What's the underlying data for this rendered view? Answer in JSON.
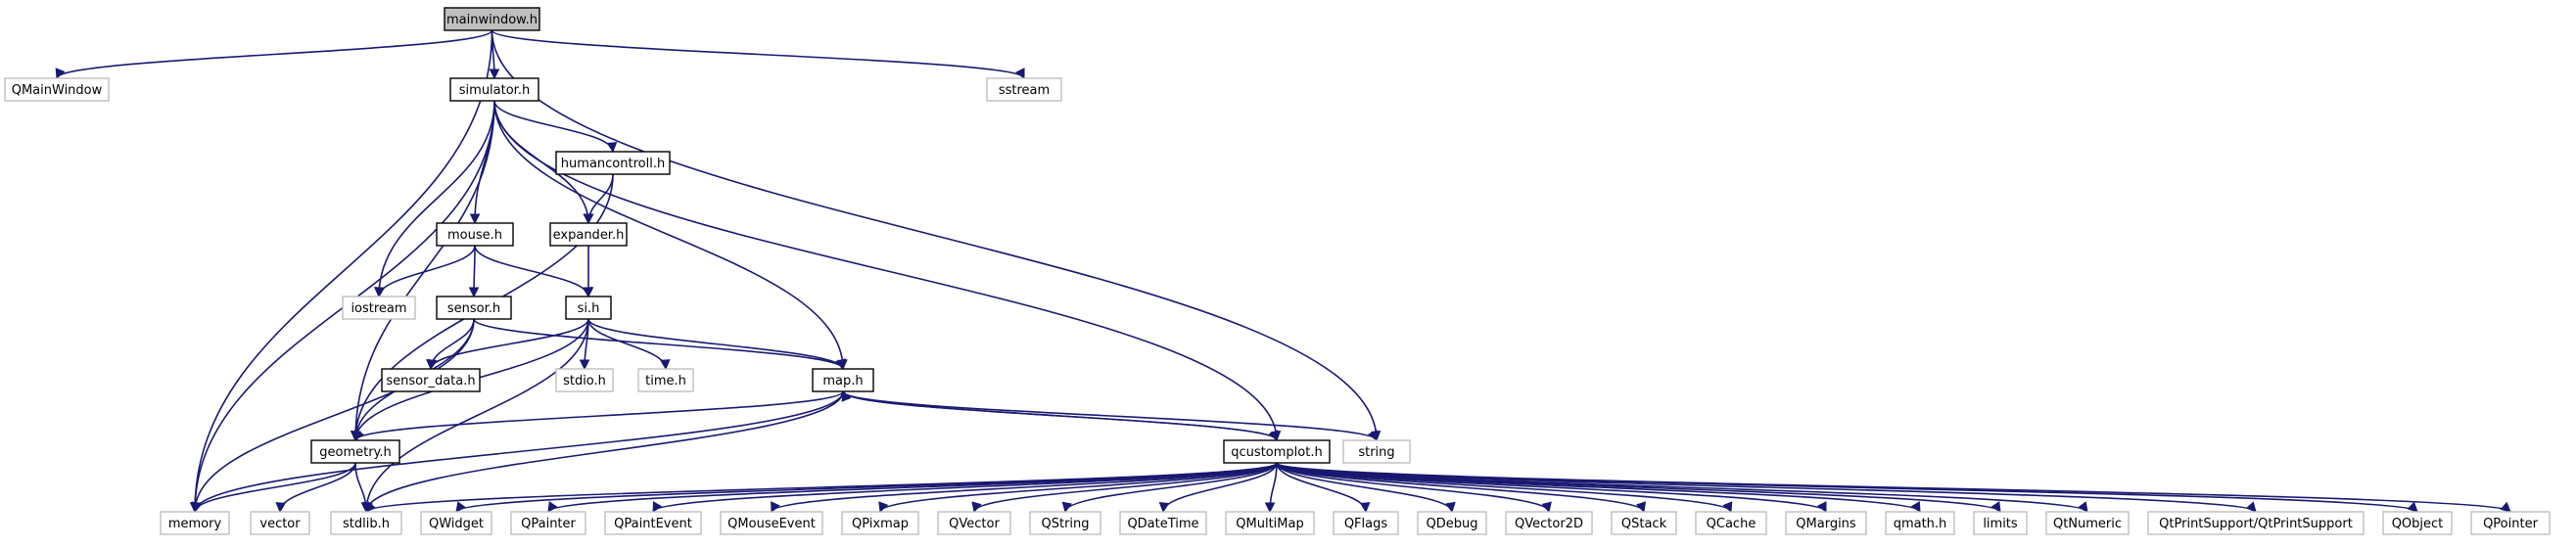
{
  "graph": {
    "nodes": [
      {
        "id": "mainwindow",
        "label": "mainwindow.h",
        "kind": "main"
      },
      {
        "id": "qmainwindow",
        "label": "QMainWindow",
        "kind": "ext"
      },
      {
        "id": "simulator",
        "label": "simulator.h",
        "kind": "doc"
      },
      {
        "id": "sstream",
        "label": "sstream",
        "kind": "ext"
      },
      {
        "id": "humancontroll",
        "label": "humancontroll.h",
        "kind": "doc"
      },
      {
        "id": "mouse",
        "label": "mouse.h",
        "kind": "doc"
      },
      {
        "id": "expander",
        "label": "expander.h",
        "kind": "doc"
      },
      {
        "id": "iostream",
        "label": "iostream",
        "kind": "ext"
      },
      {
        "id": "sensor",
        "label": "sensor.h",
        "kind": "doc"
      },
      {
        "id": "si",
        "label": "si.h",
        "kind": "doc"
      },
      {
        "id": "sensor_data",
        "label": "sensor_data.h",
        "kind": "doc"
      },
      {
        "id": "stdio",
        "label": "stdio.h",
        "kind": "ext"
      },
      {
        "id": "time",
        "label": "time.h",
        "kind": "ext"
      },
      {
        "id": "map",
        "label": "map.h",
        "kind": "doc"
      },
      {
        "id": "geometry",
        "label": "geometry.h",
        "kind": "doc"
      },
      {
        "id": "qcustomplot",
        "label": "qcustomplot.h",
        "kind": "doc"
      },
      {
        "id": "string",
        "label": "string",
        "kind": "ext"
      },
      {
        "id": "memory",
        "label": "memory",
        "kind": "ext"
      },
      {
        "id": "vector",
        "label": "vector",
        "kind": "ext"
      },
      {
        "id": "stdlib",
        "label": "stdlib.h",
        "kind": "ext"
      },
      {
        "id": "qwidget",
        "label": "QWidget",
        "kind": "ext"
      },
      {
        "id": "qpainter",
        "label": "QPainter",
        "kind": "ext"
      },
      {
        "id": "qpaintevent",
        "label": "QPaintEvent",
        "kind": "ext"
      },
      {
        "id": "qmouseevent",
        "label": "QMouseEvent",
        "kind": "ext"
      },
      {
        "id": "qpixmap",
        "label": "QPixmap",
        "kind": "ext"
      },
      {
        "id": "qvector",
        "label": "QVector",
        "kind": "ext"
      },
      {
        "id": "qstring",
        "label": "QString",
        "kind": "ext"
      },
      {
        "id": "qdatetime",
        "label": "QDateTime",
        "kind": "ext"
      },
      {
        "id": "qmultimap",
        "label": "QMultiMap",
        "kind": "ext"
      },
      {
        "id": "qflags",
        "label": "QFlags",
        "kind": "ext"
      },
      {
        "id": "qdebug",
        "label": "QDebug",
        "kind": "ext"
      },
      {
        "id": "qvector2d",
        "label": "QVector2D",
        "kind": "ext"
      },
      {
        "id": "qstack",
        "label": "QStack",
        "kind": "ext"
      },
      {
        "id": "qcache",
        "label": "QCache",
        "kind": "ext"
      },
      {
        "id": "qmargins",
        "label": "QMargins",
        "kind": "ext"
      },
      {
        "id": "qmath",
        "label": "qmath.h",
        "kind": "ext"
      },
      {
        "id": "limits",
        "label": "limits",
        "kind": "ext"
      },
      {
        "id": "qtnumeric",
        "label": "QtNumeric",
        "kind": "ext"
      },
      {
        "id": "qtprintsupport",
        "label": "QtPrintSupport/QtPrintSupport",
        "kind": "ext"
      },
      {
        "id": "qobject",
        "label": "QObject",
        "kind": "ext"
      },
      {
        "id": "qpointer",
        "label": "QPointer",
        "kind": "ext"
      }
    ],
    "edges": [
      [
        "mainwindow",
        "qmainwindow"
      ],
      [
        "mainwindow",
        "simulator"
      ],
      [
        "mainwindow",
        "sstream"
      ],
      [
        "mainwindow",
        "string"
      ],
      [
        "mainwindow",
        "memory"
      ],
      [
        "simulator",
        "humancontroll"
      ],
      [
        "simulator",
        "mouse"
      ],
      [
        "simulator",
        "expander"
      ],
      [
        "simulator",
        "iostream"
      ],
      [
        "simulator",
        "map"
      ],
      [
        "simulator",
        "geometry"
      ],
      [
        "simulator",
        "qcustomplot"
      ],
      [
        "simulator",
        "memory"
      ],
      [
        "humancontroll",
        "expander"
      ],
      [
        "humancontroll",
        "geometry"
      ],
      [
        "mouse",
        "iostream"
      ],
      [
        "mouse",
        "sensor"
      ],
      [
        "mouse",
        "si"
      ],
      [
        "expander",
        "si"
      ],
      [
        "sensor",
        "sensor_data"
      ],
      [
        "sensor",
        "map"
      ],
      [
        "sensor",
        "geometry"
      ],
      [
        "sensor",
        "memory"
      ],
      [
        "si",
        "sensor_data"
      ],
      [
        "si",
        "stdio"
      ],
      [
        "si",
        "time"
      ],
      [
        "si",
        "map"
      ],
      [
        "si",
        "geometry"
      ],
      [
        "si",
        "stdlib"
      ],
      [
        "map",
        "geometry"
      ],
      [
        "map",
        "qcustomplot"
      ],
      [
        "map",
        "string"
      ],
      [
        "map",
        "memory"
      ],
      [
        "map",
        "stdlib"
      ],
      [
        "geometry",
        "memory"
      ],
      [
        "geometry",
        "vector"
      ],
      [
        "geometry",
        "stdlib"
      ],
      [
        "qcustomplot",
        "qwidget"
      ],
      [
        "qcustomplot",
        "qpainter"
      ],
      [
        "qcustomplot",
        "qpaintevent"
      ],
      [
        "qcustomplot",
        "qmouseevent"
      ],
      [
        "qcustomplot",
        "qpixmap"
      ],
      [
        "qcustomplot",
        "qvector"
      ],
      [
        "qcustomplot",
        "qstring"
      ],
      [
        "qcustomplot",
        "qdatetime"
      ],
      [
        "qcustomplot",
        "qmultimap"
      ],
      [
        "qcustomplot",
        "qflags"
      ],
      [
        "qcustomplot",
        "qdebug"
      ],
      [
        "qcustomplot",
        "qvector2d"
      ],
      [
        "qcustomplot",
        "qstack"
      ],
      [
        "qcustomplot",
        "qcache"
      ],
      [
        "qcustomplot",
        "qmargins"
      ],
      [
        "qcustomplot",
        "qmath"
      ],
      [
        "qcustomplot",
        "limits"
      ],
      [
        "qcustomplot",
        "qtnumeric"
      ],
      [
        "qcustomplot",
        "qtprintsupport"
      ],
      [
        "qcustomplot",
        "qobject"
      ],
      [
        "qcustomplot",
        "qpointer"
      ],
      [
        "qcustomplot",
        "stdlib"
      ],
      [
        "qcustomplot",
        "map"
      ]
    ]
  }
}
